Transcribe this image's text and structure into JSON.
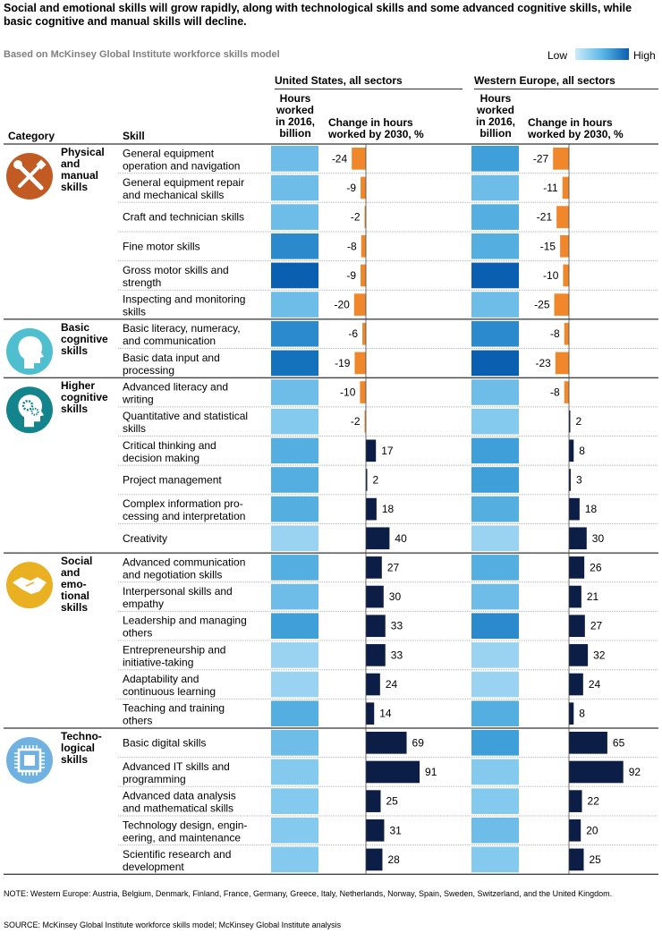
{
  "title": "Social and emotional skills will grow rapidly, along with technological skills and some advanced cognitive skills, while basic cognitive and manual skills will decline.",
  "subtitle": "Based on McKinsey Global Institute workforce skills model",
  "legend": {
    "low": "Low",
    "high": "High",
    "low_color": "#cdeaf8",
    "high_color": "#0a5fb0"
  },
  "headers": {
    "category": "Category",
    "skill": "Skill",
    "us_region": "United States, all sectors",
    "we_region": "Western Europe, all sectors",
    "hours_line1": "Hours",
    "hours_line2": "worked",
    "hours_line3": "in 2016,",
    "hours_line4": "billion",
    "change_line1": "Change in hours",
    "change_line2": "worked by 2030, %"
  },
  "colors": {
    "negative": "#f0872a",
    "positive": "#0c1e45"
  },
  "chart_data": {
    "type": "bar",
    "series": [
      {
        "name": "United States, all sectors",
        "metric": "Change in hours worked by 2030, %"
      },
      {
        "name": "Western Europe, all sectors",
        "metric": "Change in hours worked by 2030, %"
      }
    ],
    "heat_scale": "Hours worked in 2016, billion (color intensity, Low to High)",
    "categories": [
      {
        "name": "Physical and manual skills",
        "label_lines": [
          "Physical",
          "and",
          "manual",
          "skills"
        ],
        "icon": "tools-icon",
        "icon_color": "#c25a24",
        "skills": [
          {
            "lines": [
              "General equipment",
              "operation and navigation"
            ],
            "us_hours_level": 3,
            "us_change": -24,
            "we_hours_level": 5,
            "we_change": -27
          },
          {
            "lines": [
              "General equipment repair",
              "and mechanical skills"
            ],
            "us_hours_level": 3,
            "us_change": -9,
            "we_hours_level": 3,
            "we_change": -11
          },
          {
            "lines": [
              "Craft and technician skills"
            ],
            "us_hours_level": 3,
            "us_change": -2,
            "we_hours_level": 4,
            "we_change": -21
          },
          {
            "lines": [
              "Fine motor skills"
            ],
            "us_hours_level": 6,
            "us_change": -8,
            "we_hours_level": 4,
            "we_change": -15
          },
          {
            "lines": [
              "Gross motor skills and",
              "strength"
            ],
            "us_hours_level": 8,
            "us_change": -9,
            "we_hours_level": 8,
            "we_change": -10
          },
          {
            "lines": [
              "Inspecting and monitoring",
              "skills"
            ],
            "us_hours_level": 3,
            "us_change": -20,
            "we_hours_level": 3,
            "we_change": -25
          }
        ]
      },
      {
        "name": "Basic cognitive skills",
        "label_lines": [
          "Basic",
          "cognitive",
          "skills"
        ],
        "icon": "head-icon",
        "icon_color": "#4fbfd0",
        "skills": [
          {
            "lines": [
              "Basic literacy, numeracy,",
              "and communication"
            ],
            "us_hours_level": 6,
            "us_change": -6,
            "we_hours_level": 6,
            "we_change": -8
          },
          {
            "lines": [
              "Basic data input and",
              "processing"
            ],
            "us_hours_level": 7,
            "us_change": -19,
            "we_hours_level": 8,
            "we_change": -23
          }
        ]
      },
      {
        "name": "Higher cognitive skills",
        "label_lines": [
          "Higher",
          "cognitive",
          "skills"
        ],
        "icon": "brain-gears-icon",
        "icon_color": "#13838c",
        "skills": [
          {
            "lines": [
              "Advanced literacy and",
              "writing"
            ],
            "us_hours_level": 3,
            "us_change": -10,
            "we_hours_level": 3,
            "we_change": -8
          },
          {
            "lines": [
              "Quantitative and statistical",
              "skills"
            ],
            "us_hours_level": 2,
            "us_change": -2,
            "we_hours_level": 2,
            "we_change": 2
          },
          {
            "lines": [
              "Critical thinking and",
              "decision making"
            ],
            "us_hours_level": 4,
            "us_change": 17,
            "we_hours_level": 5,
            "we_change": 8
          },
          {
            "lines": [
              "Project management"
            ],
            "us_hours_level": 4,
            "us_change": 2,
            "we_hours_level": 5,
            "we_change": 3
          },
          {
            "lines": [
              "Complex information pro-",
              "cessing and interpretation"
            ],
            "us_hours_level": 4,
            "us_change": 18,
            "we_hours_level": 4,
            "we_change": 18
          },
          {
            "lines": [
              "Creativity"
            ],
            "us_hours_level": 1,
            "us_change": 40,
            "we_hours_level": 1,
            "we_change": 30
          }
        ]
      },
      {
        "name": "Social and emotional skills",
        "label_lines": [
          "Social",
          "and",
          "emo-",
          "tional",
          "skills"
        ],
        "icon": "handshake-icon",
        "icon_color": "#e9b021",
        "skills": [
          {
            "lines": [
              "Advanced communication",
              "and negotiation skills"
            ],
            "us_hours_level": 4,
            "us_change": 27,
            "we_hours_level": 4,
            "we_change": 26
          },
          {
            "lines": [
              "Interpersonal skills and",
              "empathy"
            ],
            "us_hours_level": 3,
            "us_change": 30,
            "we_hours_level": 3,
            "we_change": 21
          },
          {
            "lines": [
              "Leadership and managing",
              "others"
            ],
            "us_hours_level": 5,
            "us_change": 33,
            "we_hours_level": 6,
            "we_change": 27
          },
          {
            "lines": [
              "Entrepreneurship and",
              "initiative-taking"
            ],
            "us_hours_level": 1,
            "us_change": 33,
            "we_hours_level": 1,
            "we_change": 32
          },
          {
            "lines": [
              "Adaptability and",
              "continuous learning"
            ],
            "us_hours_level": 1,
            "us_change": 24,
            "we_hours_level": 1,
            "we_change": 24
          },
          {
            "lines": [
              "Teaching and training",
              "others"
            ],
            "us_hours_level": 4,
            "us_change": 14,
            "we_hours_level": 4,
            "we_change": 8
          }
        ]
      },
      {
        "name": "Technological skills",
        "label_lines": [
          "Techno-",
          "logical",
          "skills"
        ],
        "icon": "chip-icon",
        "icon_color": "#6fb2e2",
        "skills": [
          {
            "lines": [
              "Basic digital skills"
            ],
            "us_hours_level": 3,
            "us_change": 69,
            "we_hours_level": 5,
            "we_change": 65
          },
          {
            "lines": [
              "Advanced IT skills and",
              "programming"
            ],
            "us_hours_level": 2,
            "us_change": 91,
            "we_hours_level": 2,
            "we_change": 92
          },
          {
            "lines": [
              "Advanced data analysis",
              "and mathematical skills"
            ],
            "us_hours_level": 2,
            "us_change": 25,
            "we_hours_level": 2,
            "we_change": 22
          },
          {
            "lines": [
              "Technology design, engin-",
              "eering, and maintenance"
            ],
            "us_hours_level": 2,
            "us_change": 31,
            "we_hours_level": 3,
            "we_change": 20
          },
          {
            "lines": [
              "Scientific research and",
              "development"
            ],
            "us_hours_level": 2,
            "us_change": 28,
            "we_hours_level": 2,
            "we_change": 25
          }
        ]
      }
    ]
  },
  "note": "NOTE: Western Europe: Austria, Belgium, Denmark, Finland, France, Germany, Greece, Italy, Netherlands, Norway, Spain, Sweden, Switzerland, and the United Kingdom.",
  "source": "SOURCE: McKinsey Global Institute workforce skills model; McKinsey Global Institute analysis"
}
